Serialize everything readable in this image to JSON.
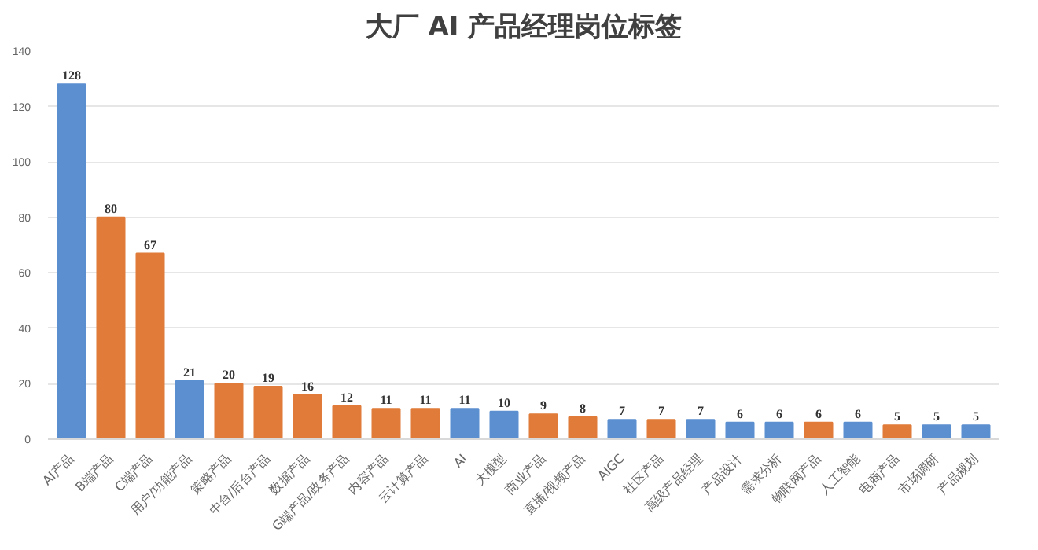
{
  "chart_data": {
    "type": "bar",
    "title": "大厂 AI 产品经理岗位标签",
    "categories": [
      "AI产品",
      "B端产品",
      "C端产品",
      "用户/功能产品",
      "策略产品",
      "中台/后台产品",
      "数据产品",
      "G端产品/政务产品",
      "内容产品",
      "云计算产品",
      "AI",
      "大模型",
      "商业产品",
      "直播/视频产品",
      "AIGC",
      "社区产品",
      "高级产品经理",
      "产品设计",
      "需求分析",
      "物联网产品",
      "人工智能",
      "电商产品",
      "市场调研",
      "产品规划"
    ],
    "values": [
      128,
      80,
      67,
      21,
      20,
      19,
      16,
      12,
      11,
      11,
      11,
      10,
      9,
      8,
      7,
      7,
      7,
      6,
      6,
      6,
      6,
      5,
      5,
      5
    ],
    "colors": [
      "#5b8fcf",
      "#e07b39",
      "#e07b39",
      "#5b8fcf",
      "#e07b39",
      "#e07b39",
      "#e07b39",
      "#e07b39",
      "#e07b39",
      "#e07b39",
      "#5b8fcf",
      "#5b8fcf",
      "#e07b39",
      "#e07b39",
      "#5b8fcf",
      "#e07b39",
      "#5b8fcf",
      "#5b8fcf",
      "#5b8fcf",
      "#e07b39",
      "#5b8fcf",
      "#e07b39",
      "#5b8fcf",
      "#5b8fcf"
    ],
    "ylim": [
      0,
      140
    ],
    "yticks": [
      0,
      20,
      40,
      60,
      80,
      100,
      120,
      140
    ],
    "grid": "y",
    "data_labels": true
  }
}
